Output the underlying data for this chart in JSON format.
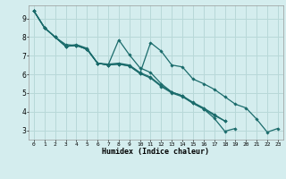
{
  "xlabel": "Humidex (Indice chaleur)",
  "bg_color": "#d4edee",
  "grid_color": "#b8d8d8",
  "line_color": "#1a6b6b",
  "marker_color": "#1a6b6b",
  "xlim": [
    -0.5,
    23.5
  ],
  "ylim": [
    2.5,
    9.7
  ],
  "xticks": [
    0,
    1,
    2,
    3,
    4,
    5,
    6,
    7,
    8,
    9,
    10,
    11,
    12,
    13,
    14,
    15,
    16,
    17,
    18,
    19,
    20,
    21,
    22,
    23
  ],
  "yticks": [
    3,
    4,
    5,
    6,
    7,
    8,
    9
  ],
  "series": [
    [
      9.4,
      8.5,
      8.0,
      7.6,
      7.55,
      7.35,
      6.6,
      6.5,
      6.55,
      6.45,
      6.05,
      7.7,
      7.25,
      6.5,
      6.4,
      5.75,
      5.5,
      5.2,
      4.8,
      4.4,
      4.2,
      3.6,
      2.9,
      3.1
    ],
    [
      9.4,
      8.5,
      8.0,
      7.5,
      7.55,
      7.35,
      6.6,
      6.5,
      7.85,
      7.05,
      6.35,
      6.1,
      5.5,
      5.05,
      4.85,
      4.45,
      4.15,
      3.65,
      2.95,
      3.1,
      null,
      null,
      null,
      null
    ],
    [
      9.4,
      8.5,
      8.0,
      7.5,
      7.6,
      7.4,
      6.6,
      6.55,
      6.6,
      6.5,
      6.1,
      5.85,
      5.4,
      5.05,
      4.85,
      4.5,
      4.2,
      3.85,
      3.5,
      null,
      null,
      null,
      null,
      null
    ],
    [
      9.4,
      8.5,
      8.0,
      7.5,
      7.55,
      7.35,
      6.6,
      6.5,
      6.55,
      6.45,
      6.05,
      5.8,
      5.35,
      5.0,
      4.8,
      4.45,
      4.15,
      3.8,
      3.5,
      null,
      null,
      null,
      null,
      null
    ]
  ]
}
